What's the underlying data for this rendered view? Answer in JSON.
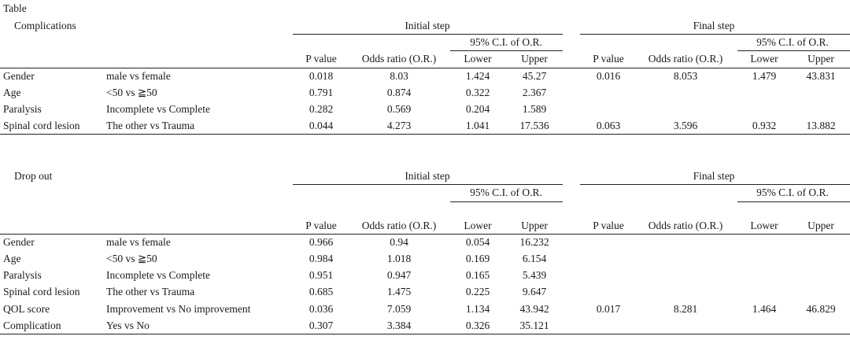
{
  "caption": "Table",
  "headers": {
    "initial_step": "Initial step",
    "final_step": "Final step",
    "ci": "95% C.I. of O.R.",
    "columns": [
      "P value",
      "Odds ratio (O.R.)",
      "Lower",
      "Upper",
      "P value",
      "Odds ratio (O.R.)",
      "Lower",
      "Upper"
    ]
  },
  "sections": [
    {
      "title": "Complications",
      "rows": [
        {
          "var": "Gender",
          "cmp": "male vs female",
          "vals": [
            "0.018",
            "8.03",
            "1.424",
            "45.27",
            "0.016",
            "8.053",
            "1.479",
            "43.831"
          ]
        },
        {
          "var": "Age",
          "cmp": "<50 vs ≧50",
          "vals": [
            "0.791",
            "0.874",
            "0.322",
            "2.367",
            "",
            "",
            "",
            ""
          ]
        },
        {
          "var": "Paralysis",
          "cmp": "Incomplete vs Complete",
          "vals": [
            "0.282",
            "0.569",
            "0.204",
            "1.589",
            "",
            "",
            "",
            ""
          ]
        },
        {
          "var": "Spinal cord lesion",
          "cmp": "The other vs Trauma",
          "vals": [
            "0.044",
            "4.273",
            "1.041",
            "17.536",
            "0.063",
            "3.596",
            "0.932",
            "13.882"
          ]
        }
      ]
    },
    {
      "title": "Drop out",
      "rows": [
        {
          "var": "Gender",
          "cmp": "male vs female",
          "vals": [
            "0.966",
            "0.94",
            "0.054",
            "16.232",
            "",
            "",
            "",
            ""
          ]
        },
        {
          "var": "Age",
          "cmp": "<50 vs ≧50",
          "vals": [
            "0.984",
            "1.018",
            "0.169",
            "6.154",
            "",
            "",
            "",
            ""
          ]
        },
        {
          "var": "Paralysis",
          "cmp": "Incomplete vs Complete",
          "vals": [
            "0.951",
            "0.947",
            "0.165",
            "5.439",
            "",
            "",
            "",
            ""
          ]
        },
        {
          "var": "Spinal cord lesion",
          "cmp": "The other vs Trauma",
          "vals": [
            "0.685",
            "1.475",
            "0.225",
            "9.647",
            "",
            "",
            "",
            ""
          ]
        },
        {
          "var": "QOL score",
          "cmp": "Improvement vs No improvement",
          "vals": [
            "0.036",
            "7.059",
            "1.134",
            "43.942",
            "0.017",
            "8.281",
            "1.464",
            "46.829"
          ]
        },
        {
          "var": "Complication",
          "cmp": "Yes vs No",
          "vals": [
            "0.307",
            "3.384",
            "0.326",
            "35.121",
            "",
            "",
            "",
            ""
          ]
        }
      ]
    }
  ]
}
